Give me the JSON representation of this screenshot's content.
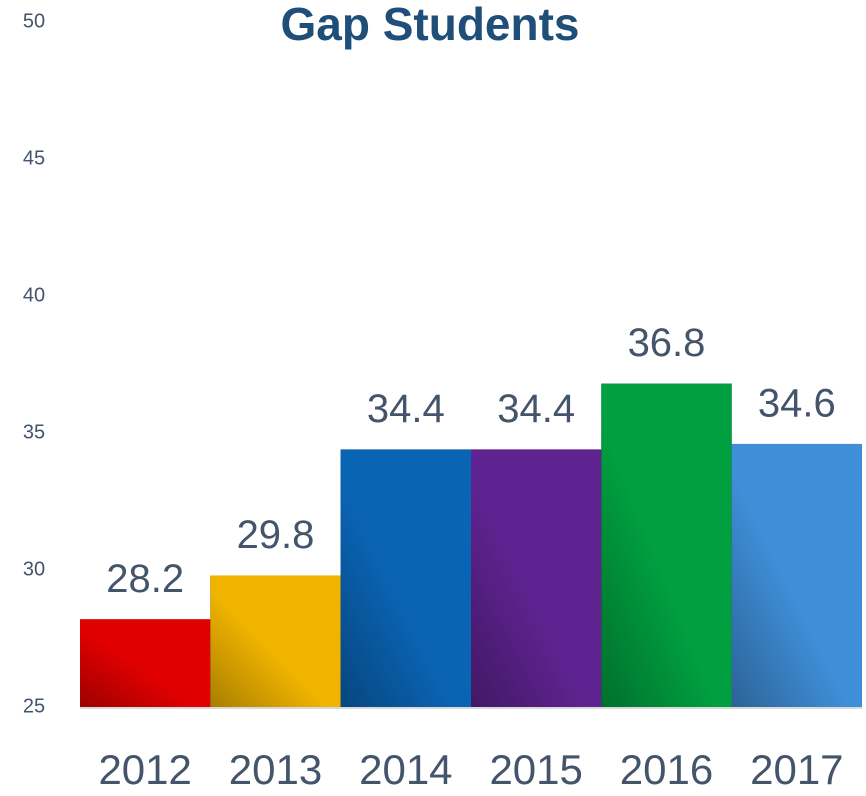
{
  "chart_data": {
    "type": "bar",
    "title": "Gap Students",
    "categories": [
      "2012",
      "2013",
      "2014",
      "2015",
      "2016",
      "2017"
    ],
    "values": [
      28.2,
      29.8,
      34.4,
      34.4,
      36.8,
      34.6
    ],
    "colors": [
      "#e00000",
      "#f0b400",
      "#0a64b4",
      "#5e2390",
      "#00a040",
      "#3f8ed8"
    ],
    "ylim": [
      25,
      50
    ],
    "yticks": [
      25,
      30,
      35,
      40,
      45,
      50
    ],
    "grid": false
  }
}
